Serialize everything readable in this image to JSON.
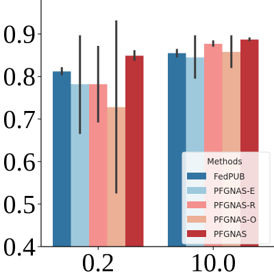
{
  "chart_data": {
    "type": "bar",
    "categories": [
      "0.2",
      "10.0"
    ],
    "series": [
      {
        "name": "FedPUB",
        "color": "#3274a1",
        "values": [
          0.812,
          0.855
        ],
        "err_low": [
          0.803,
          0.845
        ],
        "err_high": [
          0.822,
          0.865
        ]
      },
      {
        "name": "PFGNAS-E",
        "color": "#9ec9dc",
        "values": [
          0.782,
          0.845
        ],
        "err_low": [
          0.665,
          0.795
        ],
        "err_high": [
          0.897,
          0.897
        ]
      },
      {
        "name": "PFGNAS-R",
        "color": "#f4908e",
        "values": [
          0.782,
          0.877
        ],
        "err_low": [
          0.692,
          0.87
        ],
        "err_high": [
          0.872,
          0.885
        ]
      },
      {
        "name": "PFGNAS-O",
        "color": "#ebb096",
        "values": [
          0.728,
          0.858
        ],
        "err_low": [
          0.525,
          0.82
        ],
        "err_high": [
          0.932,
          0.897
        ]
      },
      {
        "name": "PFGNAS",
        "color": "#bd3439",
        "values": [
          0.849,
          0.887
        ],
        "err_low": [
          0.837,
          0.883
        ],
        "err_high": [
          0.862,
          0.892
        ]
      }
    ],
    "y_ticks": [
      "0.4",
      "0.5",
      "0.6",
      "0.7",
      "0.8",
      "0.9"
    ],
    "ylim": [
      0.4,
      0.98
    ],
    "legend": {
      "title": "Methods",
      "placement": "lower-right"
    },
    "grid": false,
    "error_bar_color": "#3b3b3b"
  }
}
